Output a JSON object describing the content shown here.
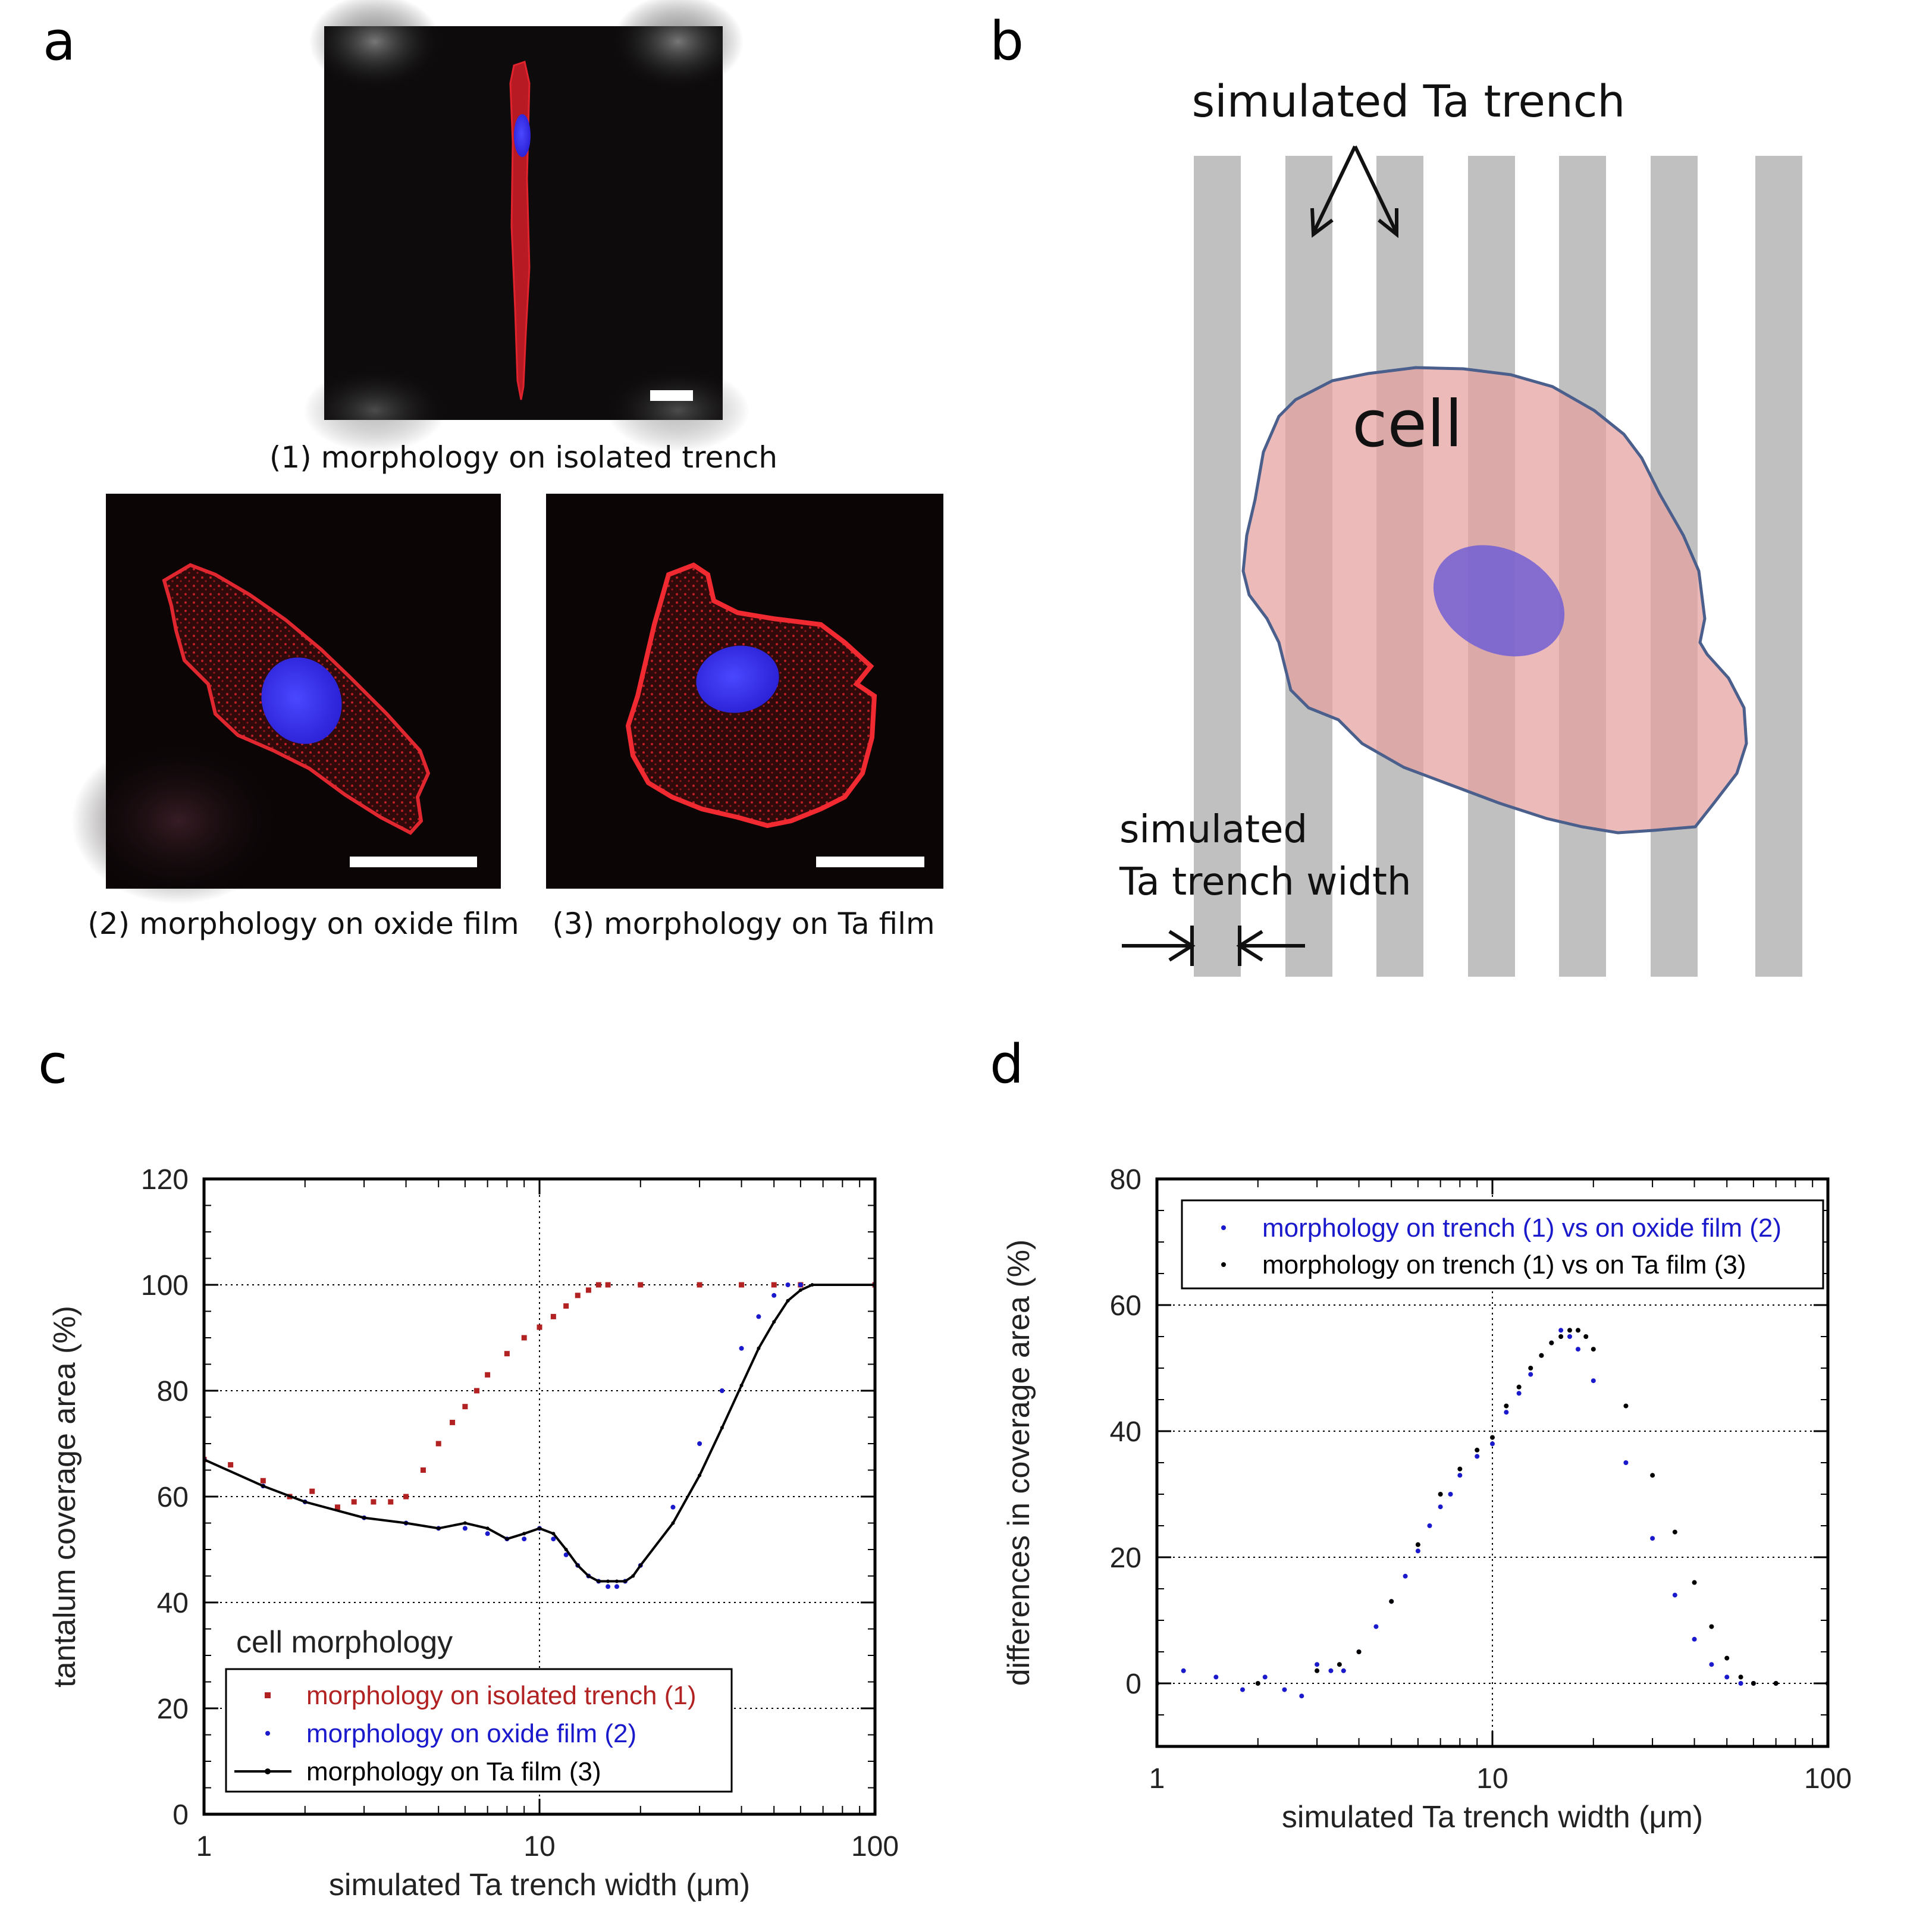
{
  "panels": {
    "a": {
      "letter": "a",
      "caption1": "(1)  morphology on isolated trench",
      "caption2": "(2)  morphology on oxide film",
      "caption3": "(3)  morphology on Ta film"
    },
    "b": {
      "letter": "b",
      "trench_label": "simulated Ta trench",
      "cell_label": "cell",
      "width_label_line1": "simulated",
      "width_label_line2": "Ta trench width"
    },
    "c": {
      "letter": "c"
    },
    "d": {
      "letter": "d"
    }
  },
  "colors": {
    "red": "#b22222",
    "blue": "#1a1acc",
    "black": "#000000",
    "trench_gray": "#c0c0c0",
    "cell_fill": "#e8a2a2",
    "cell_edge": "#4a5f8c",
    "nucleus": "#6a5ad6"
  },
  "chart_data": [
    {
      "panel": "c",
      "type": "scatter",
      "x_scale": "log",
      "xlabel": "simulated Ta trench width (μm)",
      "ylabel": "tantalum coverage area (%)",
      "xlim": [
        1,
        100
      ],
      "ylim": [
        0,
        120
      ],
      "xticks": [
        1,
        10,
        100
      ],
      "xtick_labels": [
        "1",
        "10",
        "100"
      ],
      "yticks": [
        0,
        20,
        40,
        60,
        80,
        100,
        120
      ],
      "ytick_labels": [
        "0",
        "20",
        "40",
        "60",
        "80",
        "100",
        "120"
      ],
      "grid": true,
      "legend_title": "cell morphology",
      "legend_position": "bottom-left",
      "series": [
        {
          "name": "morphology on isolated trench (1)",
          "color": "#b22222",
          "marker": "square",
          "x": [
            1,
            1.2,
            1.5,
            1.8,
            2.1,
            2.5,
            2.8,
            3.2,
            3.6,
            4.0,
            4.5,
            5.0,
            5.5,
            6.0,
            6.5,
            7.0,
            8.0,
            9.0,
            10.0,
            11.0,
            12.0,
            13.0,
            14.0,
            15.0,
            16.0,
            20.0,
            30.0,
            40.0,
            50.0,
            60.0,
            100.0
          ],
          "y": [
            67,
            66,
            63,
            60,
            61,
            58,
            59,
            59,
            59,
            60,
            65,
            70,
            74,
            77,
            80,
            83,
            87,
            90,
            92,
            94,
            96,
            98,
            99,
            100,
            100,
            100,
            100,
            100,
            100,
            100,
            100
          ]
        },
        {
          "name": "morphology on oxide film (2)",
          "color": "#1a1acc",
          "marker": "dot",
          "x": [
            1,
            1.5,
            2,
            3,
            4,
            5,
            6,
            7,
            8,
            9,
            10,
            11,
            12,
            13,
            14,
            15,
            16,
            17,
            18,
            20,
            25,
            30,
            35,
            40,
            45,
            50,
            55,
            60,
            100
          ],
          "y": [
            67,
            62,
            59,
            56,
            55,
            54,
            54,
            53,
            52,
            52,
            54,
            52,
            49,
            47,
            45,
            44,
            43,
            43,
            44,
            47,
            58,
            70,
            80,
            88,
            94,
            98,
            100,
            100,
            100
          ]
        },
        {
          "name": "morphology on Ta film (3)",
          "color": "#000000",
          "marker": "line",
          "x": [
            1,
            1.5,
            2,
            3,
            4,
            5,
            6,
            7,
            8,
            9,
            10,
            11,
            12,
            13,
            14,
            15,
            16,
            17,
            18,
            19,
            20,
            25,
            30,
            35,
            40,
            45,
            50,
            55,
            60,
            65,
            100
          ],
          "y": [
            67,
            62,
            59,
            56,
            55,
            54,
            55,
            54,
            52,
            53,
            54,
            53,
            50,
            47,
            45,
            44,
            44,
            44,
            44,
            45,
            47,
            55,
            64,
            73,
            81,
            88,
            93,
            97,
            99,
            100,
            100
          ]
        }
      ]
    },
    {
      "panel": "d",
      "type": "scatter",
      "x_scale": "log",
      "xlabel": "simulated Ta trench width (μm)",
      "ylabel": "differences in coverage area (%)",
      "xlim": [
        1,
        100
      ],
      "ylim": [
        -10,
        80
      ],
      "xticks": [
        1,
        10,
        100
      ],
      "xtick_labels": [
        "1",
        "10",
        "100"
      ],
      "yticks": [
        0,
        20,
        40,
        60,
        80
      ],
      "ytick_labels": [
        "0",
        "20",
        "40",
        "60",
        "80"
      ],
      "grid": true,
      "legend_position": "top",
      "series": [
        {
          "name": "morphology on trench (1) vs on oxide film (2)",
          "color": "#1a1acc",
          "marker": "dot",
          "x": [
            1,
            1.2,
            1.5,
            1.8,
            2.1,
            2.4,
            2.7,
            3.0,
            3.3,
            3.6,
            4.0,
            4.5,
            5.0,
            5.5,
            6.0,
            6.5,
            7.0,
            7.5,
            8.0,
            9.0,
            10.0,
            11.0,
            12.0,
            13.0,
            14.0,
            15.0,
            16.0,
            17.0,
            18.0,
            20.0,
            25.0,
            30.0,
            35.0,
            40.0,
            45.0,
            50.0,
            55.0,
            60.0,
            70.0,
            100.0
          ],
          "y": [
            0,
            2,
            1,
            -1,
            1,
            -1,
            -2,
            3,
            2,
            2,
            5,
            9,
            13,
            17,
            21,
            25,
            28,
            30,
            33,
            36,
            38,
            43,
            46,
            49,
            52,
            54,
            56,
            55,
            53,
            48,
            35,
            23,
            14,
            7,
            3,
            1,
            0,
            0,
            0,
            0
          ]
        },
        {
          "name": "morphology on trench (1) vs on Ta film (3)",
          "color": "#000000",
          "marker": "dot",
          "x": [
            1,
            2,
            3,
            3.5,
            4,
            5,
            6,
            7,
            8,
            9,
            10,
            11,
            12,
            13,
            14,
            15,
            16,
            17,
            18,
            19,
            20,
            25,
            30,
            35,
            40,
            45,
            50,
            55,
            60,
            70,
            100
          ],
          "y": [
            0,
            0,
            2,
            3,
            5,
            13,
            22,
            30,
            34,
            37,
            39,
            44,
            47,
            50,
            52,
            54,
            55,
            56,
            56,
            55,
            53,
            44,
            33,
            24,
            16,
            9,
            4,
            1,
            0,
            0,
            0
          ]
        }
      ]
    }
  ]
}
